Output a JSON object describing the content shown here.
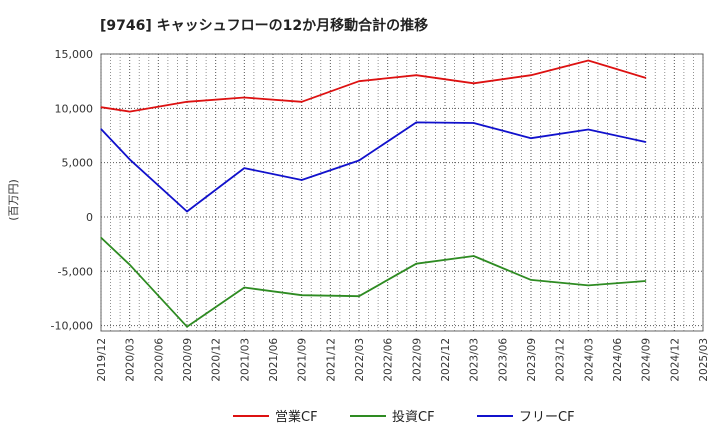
{
  "chart_data": {
    "type": "line",
    "title": "[9746]  キャッシュフローの12か月移動合計の推移",
    "ylabel": "(百万円)",
    "xlabel": "",
    "ylim": [
      -10500,
      15000
    ],
    "yticks": [
      -10000,
      -5000,
      0,
      5000,
      10000,
      15000
    ],
    "ytick_labels": [
      "-10,000",
      "-5,000",
      "0",
      "5,000",
      "10,000",
      "15,000"
    ],
    "x_tick_labels": [
      "2019/12",
      "2020/03",
      "2020/06",
      "2020/09",
      "2020/12",
      "2021/03",
      "2021/06",
      "2021/09",
      "2021/12",
      "2022/03",
      "2022/06",
      "2022/09",
      "2022/12",
      "2023/03",
      "2023/06",
      "2023/09",
      "2023/12",
      "2024/03",
      "2024/06",
      "2024/09",
      "2024/12",
      "2025/03"
    ],
    "grid": true,
    "legend_position": "bottom-center",
    "series": [
      {
        "name": "営業CF",
        "color": "#dd1111",
        "points": [
          {
            "x": "2019/12",
            "y": 10100
          },
          {
            "x": "2020/03",
            "y": 9700
          },
          {
            "x": "2020/09",
            "y": 10600
          },
          {
            "x": "2021/03",
            "y": 11000
          },
          {
            "x": "2021/09",
            "y": 10600
          },
          {
            "x": "2022/03",
            "y": 12500
          },
          {
            "x": "2022/09",
            "y": 13050
          },
          {
            "x": "2023/03",
            "y": 12300
          },
          {
            "x": "2023/09",
            "y": 13050
          },
          {
            "x": "2024/03",
            "y": 14400
          },
          {
            "x": "2024/09",
            "y": 12800
          }
        ]
      },
      {
        "name": "投資CF",
        "color": "#2e8b22",
        "points": [
          {
            "x": "2019/12",
            "y": -1900
          },
          {
            "x": "2020/03",
            "y": -4400
          },
          {
            "x": "2020/09",
            "y": -10100
          },
          {
            "x": "2021/03",
            "y": -6500
          },
          {
            "x": "2021/09",
            "y": -7200
          },
          {
            "x": "2022/03",
            "y": -7300
          },
          {
            "x": "2022/09",
            "y": -4300
          },
          {
            "x": "2023/03",
            "y": -3600
          },
          {
            "x": "2023/09",
            "y": -5800
          },
          {
            "x": "2024/03",
            "y": -6300
          },
          {
            "x": "2024/09",
            "y": -5900
          }
        ]
      },
      {
        "name": "フリーCF",
        "color": "#1111cc",
        "points": [
          {
            "x": "2019/12",
            "y": 8100
          },
          {
            "x": "2020/03",
            "y": 5300
          },
          {
            "x": "2020/09",
            "y": 500
          },
          {
            "x": "2021/03",
            "y": 4500
          },
          {
            "x": "2021/09",
            "y": 3400
          },
          {
            "x": "2022/03",
            "y": 5200
          },
          {
            "x": "2022/09",
            "y": 8700
          },
          {
            "x": "2023/03",
            "y": 8650
          },
          {
            "x": "2023/09",
            "y": 7250
          },
          {
            "x": "2024/03",
            "y": 8050
          },
          {
            "x": "2024/09",
            "y": 6900
          }
        ]
      }
    ]
  }
}
